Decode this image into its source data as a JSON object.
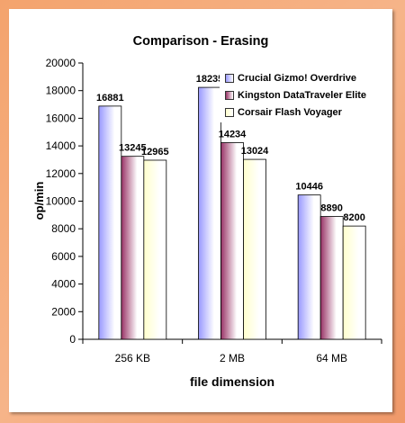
{
  "chart_data": {
    "type": "bar",
    "title": "Comparison - Erasing",
    "xlabel": "file dimension",
    "ylabel": "op/min",
    "ylim": [
      0,
      20000
    ],
    "yticks": [
      0,
      2000,
      4000,
      6000,
      8000,
      10000,
      12000,
      14000,
      16000,
      18000,
      20000
    ],
    "categories": [
      "256 KB",
      "2 MB",
      "64 MB"
    ],
    "series": [
      {
        "name": "Crucial Gizmo! Overdrive",
        "values": [
          16881,
          18235,
          10446
        ],
        "color": "#9999ff",
        "color_light": "#ffffff"
      },
      {
        "name": "Kingston DataTraveler Elite",
        "values": [
          13245,
          14234,
          8890
        ],
        "color": "#993366",
        "color_light": "#ffffff"
      },
      {
        "name": "Corsair Flash Voyager",
        "values": [
          12965,
          13024,
          8200
        ],
        "color": "#ffffcc",
        "color_light": "#ffffff"
      }
    ],
    "data_labels": true,
    "grid": false,
    "legend_position": "top-right"
  }
}
